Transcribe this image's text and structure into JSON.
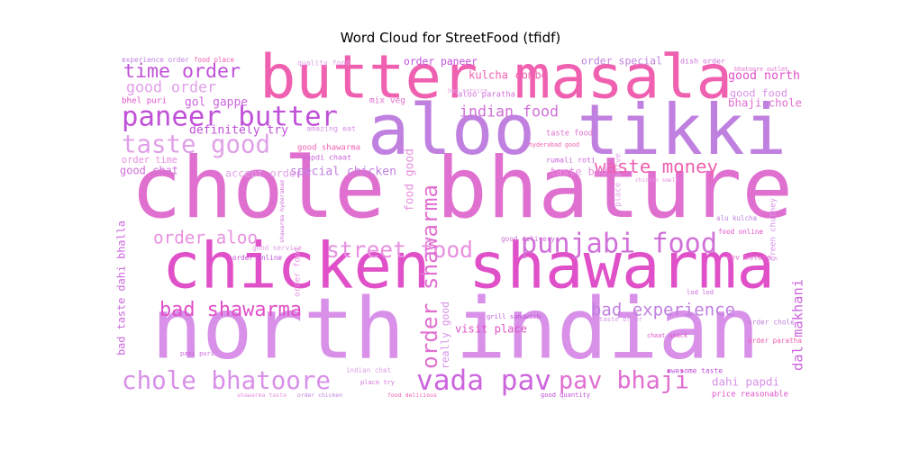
{
  "chart_data": {
    "type": "wordcloud",
    "title": "Word Cloud for StreetFood (tfidf)",
    "words": [
      "chole bhature",
      "north indian",
      "chicken shawarma",
      "aloo tikki",
      "butter masala",
      "paneer butter",
      "taste good",
      "punjabi food",
      "street food",
      "vada pav",
      "pav bhaji",
      "chole bhatoore",
      "bad shawarma",
      "bad experience",
      "waste money",
      "time order",
      "good order",
      "indian food",
      "order aloo",
      "dal makhani",
      "order shawarma",
      "really good",
      "visit place",
      "special chicken",
      "good shawarma",
      "definitely try",
      "accept order",
      "good chat",
      "order time",
      "gol gappe",
      "bhaji chole",
      "good food",
      "good north",
      "order special",
      "kulcha combo",
      "order paneer",
      "quality food",
      "aloo paratha",
      "taste bad",
      "rumali roti",
      "taste food",
      "dahi papdi",
      "price reasonable",
      "order chole",
      "order paratha",
      "awesome taste",
      "place serve",
      "good delivery",
      "food good",
      "papdi chaat",
      "mix veg",
      "amazing eat",
      "bhel puri",
      "experience order",
      "food place",
      "order online",
      "good service",
      "shawarma hyderabad",
      "order food",
      "bad taste dahi bhalla",
      "sev batata",
      "taste order",
      "chaat snack",
      "order chicken",
      "food delicious",
      "good quantity",
      "indian chat",
      "place try",
      "shawarma taste",
      "pani puri",
      "bhatoore outlet",
      "green chutney",
      "food online",
      "alu kulcha",
      "hyderabad good",
      "grill sandwich",
      "bad service",
      "dish order",
      "chicken smell",
      "lod lod"
    ]
  }
}
